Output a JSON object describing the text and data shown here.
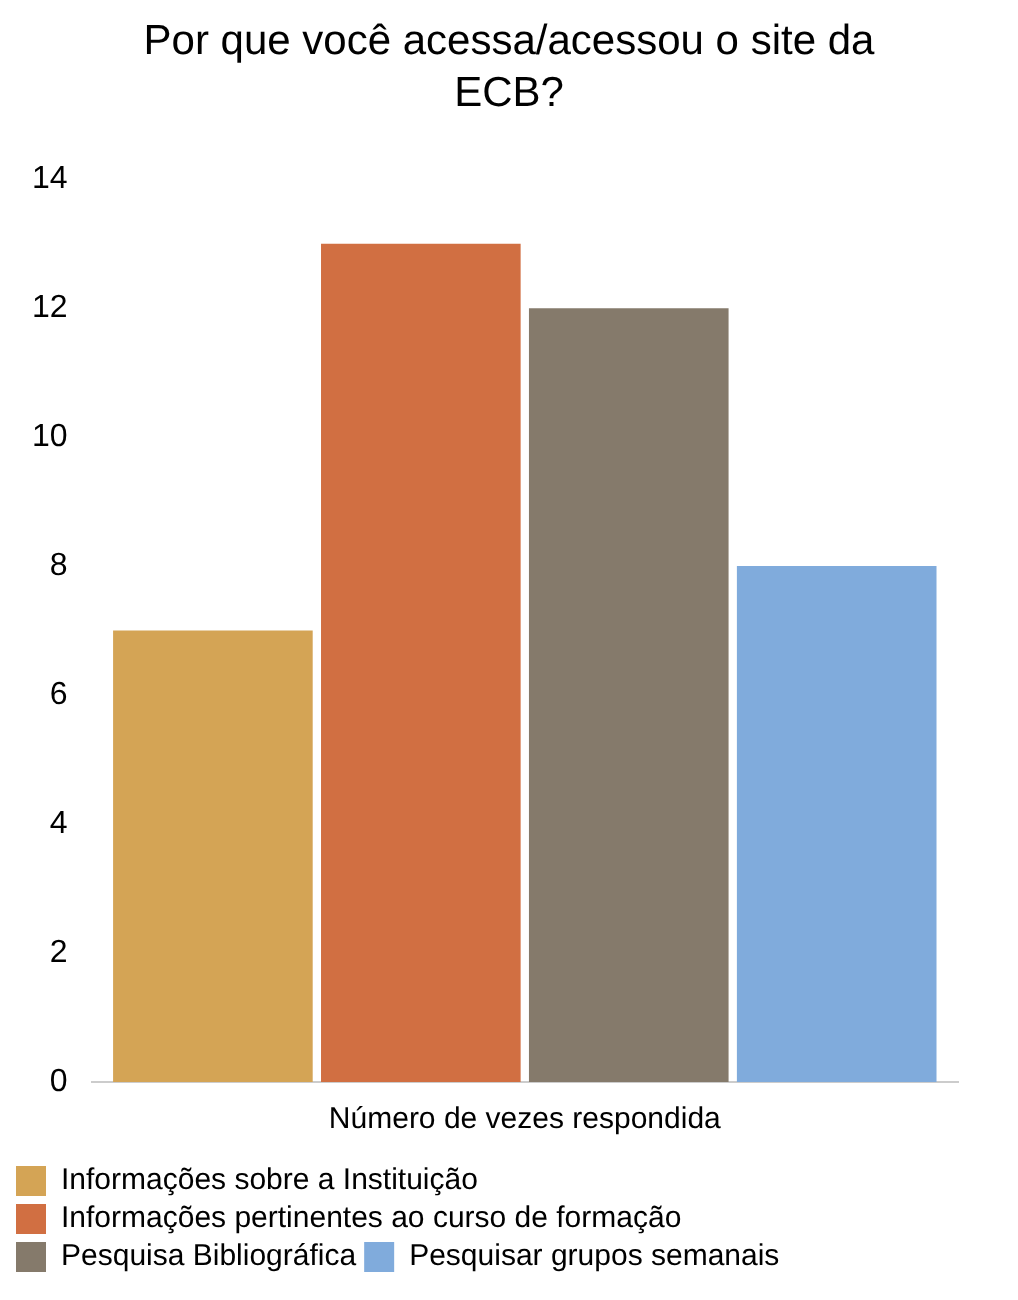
{
  "chart_data": {
    "type": "bar",
    "title": "Por que você acessa/acessou o site da ECB?",
    "categories": [
      "Número de vezes respondida"
    ],
    "series": [
      {
        "name": "Informações sobre a Instituição",
        "color": "#d4a455",
        "values": [
          7
        ]
      },
      {
        "name": "Informações pertinentes ao curso de formação",
        "color": "#d16f42",
        "values": [
          13
        ]
      },
      {
        "name": "Pesquisa Bibliográfica",
        "color": "#857a6b",
        "values": [
          12
        ]
      },
      {
        "name": "Pesquisar grupos semanais",
        "color": "#80abdc",
        "values": [
          8
        ]
      }
    ],
    "ylim": [
      0,
      14
    ],
    "yticks": [
      0,
      2,
      4,
      6,
      8,
      10,
      12,
      14
    ],
    "grid": false,
    "legend": "bottom"
  }
}
